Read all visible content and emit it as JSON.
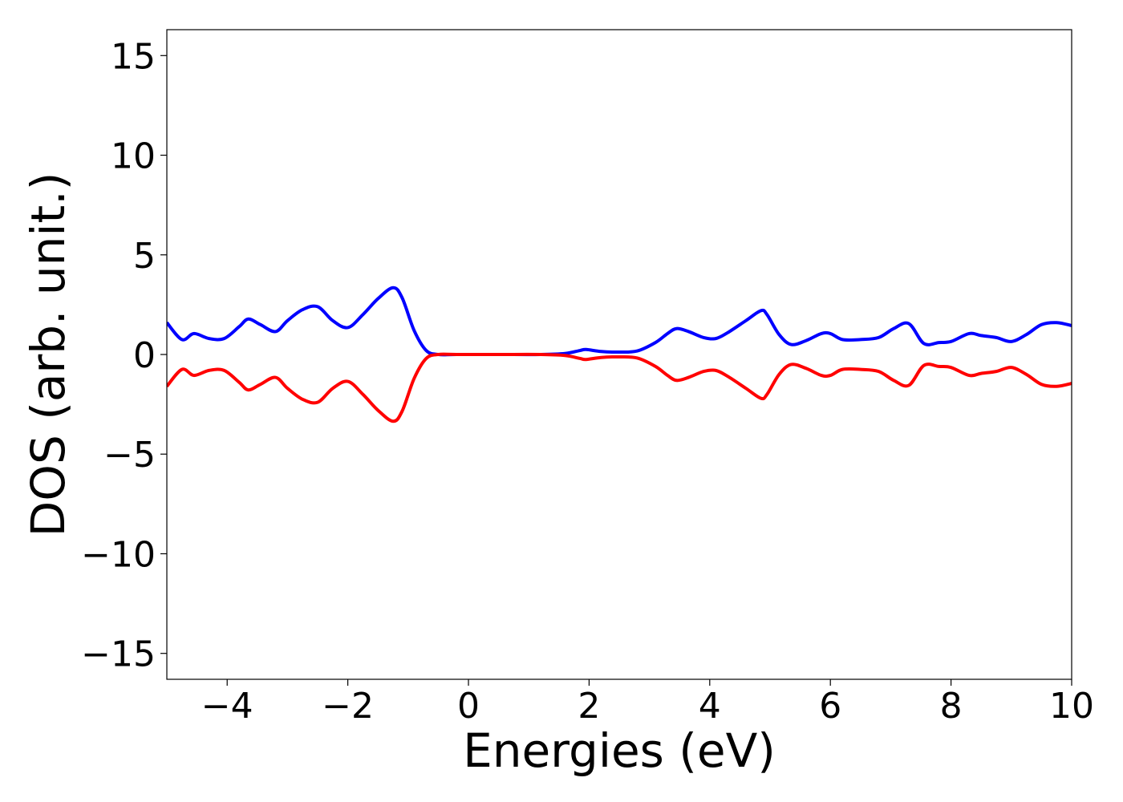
{
  "chart_data": {
    "type": "line",
    "xlabel": "Energies (eV)",
    "ylabel": "DOS (arb. unit.)",
    "xlim": [
      -5,
      10
    ],
    "ylim": [
      -16.3,
      16.3
    ],
    "grid": false,
    "legend": "none",
    "x_ticks": [
      -4,
      -2,
      0,
      2,
      4,
      6,
      8,
      10
    ],
    "x_tick_labels": [
      "−4",
      "−2",
      "0",
      "2",
      "4",
      "6",
      "8",
      "10"
    ],
    "y_ticks": [
      15,
      10,
      5,
      0,
      -5,
      -10,
      -15
    ],
    "y_tick_labels": [
      "15",
      "10",
      "5",
      "0",
      "−5",
      "−10",
      "−15"
    ],
    "series": [
      {
        "color": "#0000ff",
        "x": [
          -5.0,
          -4.75,
          -4.55,
          -4.3,
          -4.05,
          -3.8,
          -3.65,
          -3.45,
          -3.2,
          -3.0,
          -2.75,
          -2.5,
          -2.25,
          -2.0,
          -1.75,
          -1.5,
          -1.25,
          -1.1,
          -0.9,
          -0.7,
          -0.5,
          -0.2,
          0.5,
          1.2,
          1.6,
          1.85,
          1.95,
          2.2,
          2.5,
          2.8,
          3.1,
          3.3,
          3.45,
          3.65,
          3.9,
          4.1,
          4.3,
          4.6,
          4.85,
          4.95,
          5.15,
          5.35,
          5.6,
          5.85,
          6.0,
          6.2,
          6.5,
          6.8,
          7.05,
          7.3,
          7.55,
          7.8,
          8.0,
          8.3,
          8.5,
          8.75,
          9.0,
          9.25,
          9.5,
          9.75,
          10.0
        ],
        "y": [
          1.6,
          0.75,
          1.05,
          0.8,
          0.8,
          1.4,
          1.78,
          1.5,
          1.15,
          1.7,
          2.25,
          2.4,
          1.7,
          1.35,
          2.0,
          2.8,
          3.35,
          2.85,
          1.2,
          0.2,
          0.0,
          0.0,
          0.0,
          0.0,
          0.05,
          0.2,
          0.25,
          0.15,
          0.12,
          0.18,
          0.6,
          1.05,
          1.3,
          1.15,
          0.85,
          0.8,
          1.1,
          1.7,
          2.2,
          2.0,
          1.0,
          0.5,
          0.7,
          1.05,
          1.05,
          0.75,
          0.75,
          0.85,
          1.3,
          1.55,
          0.55,
          0.6,
          0.65,
          1.05,
          0.95,
          0.85,
          0.65,
          1.0,
          1.5,
          1.6,
          1.45
        ]
      },
      {
        "color": "#ff0000",
        "x": [
          -5.0,
          -4.75,
          -4.55,
          -4.3,
          -4.05,
          -3.8,
          -3.65,
          -3.45,
          -3.2,
          -3.0,
          -2.75,
          -2.5,
          -2.25,
          -2.0,
          -1.75,
          -1.5,
          -1.25,
          -1.1,
          -0.9,
          -0.7,
          -0.5,
          -0.2,
          0.5,
          1.2,
          1.6,
          1.85,
          1.95,
          2.2,
          2.5,
          2.8,
          3.1,
          3.3,
          3.45,
          3.65,
          3.9,
          4.1,
          4.3,
          4.6,
          4.85,
          4.95,
          5.15,
          5.35,
          5.6,
          5.85,
          6.0,
          6.2,
          6.5,
          6.8,
          7.05,
          7.3,
          7.55,
          7.8,
          8.0,
          8.3,
          8.5,
          8.75,
          9.0,
          9.25,
          9.5,
          9.75,
          10.0
        ],
        "y": [
          -1.6,
          -0.75,
          -1.05,
          -0.8,
          -0.8,
          -1.4,
          -1.78,
          -1.5,
          -1.15,
          -1.7,
          -2.25,
          -2.4,
          -1.7,
          -1.35,
          -2.0,
          -2.8,
          -3.35,
          -2.85,
          -1.2,
          -0.2,
          0.0,
          0.0,
          0.0,
          0.0,
          -0.05,
          -0.2,
          -0.25,
          -0.15,
          -0.12,
          -0.18,
          -0.6,
          -1.05,
          -1.3,
          -1.15,
          -0.85,
          -0.8,
          -1.1,
          -1.7,
          -2.2,
          -2.0,
          -1.0,
          -0.5,
          -0.7,
          -1.05,
          -1.05,
          -0.75,
          -0.75,
          -0.85,
          -1.3,
          -1.55,
          -0.55,
          -0.6,
          -0.65,
          -1.05,
          -0.95,
          -0.85,
          -0.65,
          -1.0,
          -1.5,
          -1.6,
          -1.45
        ]
      }
    ]
  }
}
